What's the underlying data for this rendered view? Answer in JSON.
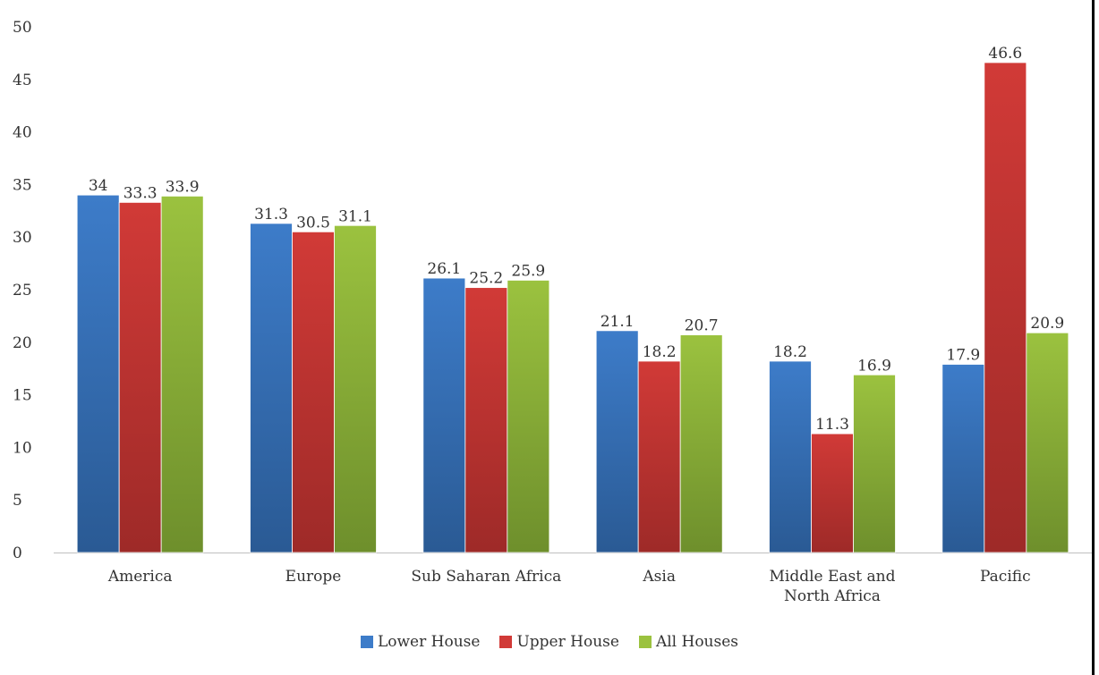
{
  "chart_data": {
    "type": "bar",
    "categories": [
      "America",
      "Europe",
      "Sub Saharan Africa",
      "Asia",
      "Middle East and North Africa",
      "Pacific"
    ],
    "category_lines": [
      [
        "America"
      ],
      [
        "Europe"
      ],
      [
        "Sub Saharan Africa"
      ],
      [
        "Asia"
      ],
      [
        "Middle East and",
        "North Africa"
      ],
      [
        "Pacific"
      ]
    ],
    "series": [
      {
        "name": "Lower House",
        "values": [
          34,
          31.3,
          26.1,
          21.1,
          18.2,
          17.9
        ],
        "labels": [
          "34",
          "31.3",
          "26.1",
          "21.1",
          "18.2",
          "17.9"
        ],
        "color": "#3d7cc9",
        "color_dark": "#2a5a94"
      },
      {
        "name": "Upper House",
        "values": [
          33.3,
          30.5,
          25.2,
          18.2,
          11.3,
          46.6
        ],
        "labels": [
          "33.3",
          "30.5",
          "25.2",
          "18.2",
          "11.3",
          "46.6"
        ],
        "color": "#d13a37",
        "color_dark": "#9e2a28"
      },
      {
        "name": "All Houses",
        "values": [
          33.9,
          31.1,
          25.9,
          20.7,
          16.9,
          20.9
        ],
        "labels": [
          "33.9",
          "31.1",
          "25.9",
          "20.7",
          "16.9",
          "20.9"
        ],
        "color": "#9bc23f",
        "color_dark": "#6e8f2c"
      }
    ],
    "yticks": [
      0,
      5,
      10,
      15,
      20,
      25,
      30,
      35,
      40,
      45,
      50
    ],
    "ytick_labels": [
      "0",
      "5",
      "10",
      "15",
      "20",
      "25",
      "30",
      "35",
      "40",
      "45",
      "50"
    ],
    "ylim": [
      0,
      50
    ],
    "title": "",
    "xlabel": "",
    "ylabel": "",
    "grid": false,
    "legend_position": "bottom"
  }
}
